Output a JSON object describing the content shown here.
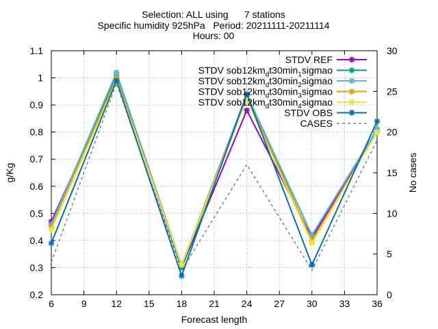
{
  "chart_data": {
    "type": "line",
    "title_lines": [
      "Selection: ALL using      7 stations",
      "Specific humidity 925hPa   Period: 20211111-20211114",
      "Hours: 00"
    ],
    "xlabel": "Forecast length",
    "ylabel": "g/Kg",
    "y2label": "No cases",
    "xlim": [
      6,
      36
    ],
    "ylim": [
      0.2,
      1.1
    ],
    "y2lim": [
      0,
      30
    ],
    "x_ticks": [
      "6",
      "9",
      "12",
      "15",
      "18",
      "21",
      "24",
      "27",
      "30",
      "33",
      "36"
    ],
    "y_ticks": [
      "0.2",
      "0.3",
      "0.4",
      "0.5",
      "0.6",
      "0.7",
      "0.8",
      "0.9",
      "1",
      "1.1"
    ],
    "y2_ticks": [
      "0",
      "5",
      "10",
      "15",
      "20",
      "25",
      "30"
    ],
    "grid": true,
    "legend_position": "top-right",
    "x": [
      6,
      12,
      18,
      24,
      30,
      36
    ],
    "series": [
      {
        "name": "STDV REF",
        "legend_parts": [
          [
            "STDV REF",
            ""
          ]
        ],
        "color": "#9400d3",
        "axis": "y1",
        "dashed": false,
        "marker": true,
        "values": [
          0.47,
          1.0,
          0.3,
          0.88,
          0.41,
          0.8
        ]
      },
      {
        "name": "STDV sob12km_dt30min_1sigmao",
        "legend_parts": [
          [
            "STDV sob12km",
            ""
          ],
          [
            "d",
            "sub"
          ],
          [
            "t30min",
            ""
          ],
          [
            "1",
            "sub"
          ],
          [
            "sigmao",
            ""
          ]
        ],
        "color": "#009e73",
        "axis": "y1",
        "dashed": false,
        "marker": true,
        "values": [
          0.46,
          1.01,
          0.3,
          0.93,
          0.42,
          0.81
        ]
      },
      {
        "name": "STDV sob12km_dt30min_2sigmao",
        "legend_parts": [
          [
            "STDV sob12km",
            ""
          ],
          [
            "d",
            "sub"
          ],
          [
            "t30min",
            ""
          ],
          [
            "2",
            "sub"
          ],
          [
            "sigmao",
            ""
          ]
        ],
        "color": "#56b4e9",
        "axis": "y1",
        "dashed": false,
        "marker": true,
        "values": [
          0.46,
          1.02,
          0.31,
          0.94,
          0.42,
          0.81
        ]
      },
      {
        "name": "STDV sob12km_dt30min_3sigmao",
        "legend_parts": [
          [
            "STDV sob12km",
            ""
          ],
          [
            "d",
            "sub"
          ],
          [
            "t30min",
            ""
          ],
          [
            "3",
            "sub"
          ],
          [
            "sigmao",
            ""
          ]
        ],
        "color": "#e69f00",
        "axis": "y1",
        "dashed": false,
        "marker": true,
        "values": [
          0.45,
          1.0,
          0.31,
          0.93,
          0.4,
          0.8
        ]
      },
      {
        "name": "STDV sob12km_dt30min_4sigmao",
        "legend_parts": [
          [
            "STDV sob12km",
            ""
          ],
          [
            "d",
            "sub"
          ],
          [
            "t30min",
            ""
          ],
          [
            "4",
            "sub"
          ],
          [
            "sigmao",
            ""
          ]
        ],
        "color": "#f0e442",
        "axis": "y1",
        "dashed": false,
        "marker": true,
        "values": [
          0.44,
          0.99,
          0.31,
          0.92,
          0.39,
          0.8
        ]
      },
      {
        "name": "STDV OBS",
        "legend_parts": [
          [
            "STDV OBS",
            ""
          ]
        ],
        "color": "#0072b2",
        "axis": "y1",
        "dashed": false,
        "marker": true,
        "values": [
          0.39,
          0.99,
          0.27,
          0.94,
          0.31,
          0.84
        ]
      },
      {
        "name": "CASES",
        "legend_parts": [
          [
            "CASES",
            ""
          ]
        ],
        "color": "#808080",
        "axis": "y2",
        "dashed": true,
        "marker": false,
        "values": [
          4,
          26,
          3,
          16,
          3,
          19
        ]
      }
    ]
  }
}
